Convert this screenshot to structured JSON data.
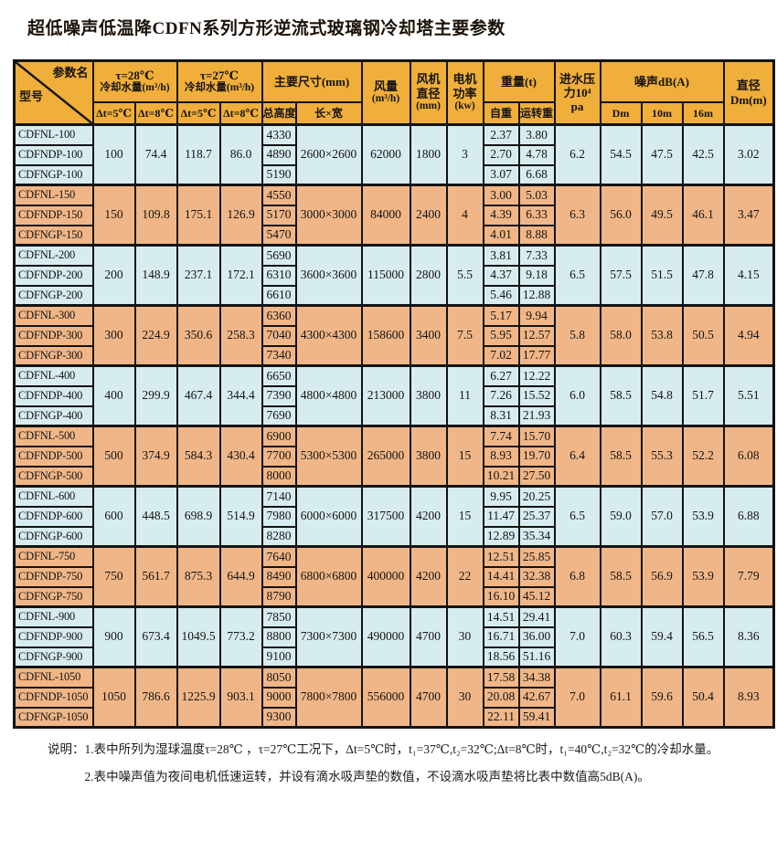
{
  "title": "超低噪声低温降CDFN系列方形逆流式玻璃钢冷却塔主要参数",
  "colors": {
    "header_gold": "#f0ae3a",
    "group_blue": "#d7ecef",
    "group_orange": "#f0b687",
    "border": "#131313"
  },
  "header": {
    "corner_top": "参数名",
    "corner_bottom": "型号",
    "tau28_line1": "τ=28℃",
    "tau28_line2": "冷却水量(m³/h)",
    "tau27_line1": "τ=27℃",
    "tau27_line2": "冷却水量(m³/h)",
    "dims": "主要尺寸(mm)",
    "flow_line1": "风量",
    "flow_line2": "(m³/h)",
    "fan_line1": "风机",
    "fan_line2": "直径",
    "fan_line3": "(mm)",
    "motor_line1": "电机",
    "motor_line2": "功率",
    "motor_line3": "(kw)",
    "weight": "重量(t)",
    "pressure_line1": "进水压",
    "pressure_line2": "力10⁴",
    "pressure_line3": "pa",
    "noise": "噪声dB(A)",
    "diameter_line1": "直径",
    "diameter_line2": "Dm(m)",
    "dt5": "Δt=5℃",
    "dt8": "Δt=8℃",
    "total_height": "总高度",
    "lw": "长×宽",
    "self_weight": "自重",
    "run_weight": "运转重",
    "dm": "Dm",
    "m10": "10m",
    "m16": "16m"
  },
  "groups": [
    {
      "tone": "blue",
      "shared": {
        "t28_dt5": "100",
        "t28_dt8": "74.4",
        "t27_dt5": "118.7",
        "t27_dt8": "86.0",
        "length_width": "2600×2600",
        "air_flow": "62000",
        "fan_diameter": "1800",
        "motor_power": "3",
        "water_pressure": "6.2",
        "noise_dm": "54.5",
        "noise_10m": "47.5",
        "noise_16m": "42.5",
        "diameter": "3.02"
      },
      "rows": [
        {
          "model": "CDFNL-100",
          "total_height": "4330",
          "self_weight": "2.37",
          "run_weight": "3.80"
        },
        {
          "model": "CDFNDP-100",
          "total_height": "4890",
          "self_weight": "2.70",
          "run_weight": "4.78"
        },
        {
          "model": "CDFNGP-100",
          "total_height": "5190",
          "self_weight": "3.07",
          "run_weight": "6.68"
        }
      ]
    },
    {
      "tone": "orange",
      "shared": {
        "t28_dt5": "150",
        "t28_dt8": "109.8",
        "t27_dt5": "175.1",
        "t27_dt8": "126.9",
        "length_width": "3000×3000",
        "air_flow": "84000",
        "fan_diameter": "2400",
        "motor_power": "4",
        "water_pressure": "6.3",
        "noise_dm": "56.0",
        "noise_10m": "49.5",
        "noise_16m": "46.1",
        "diameter": "3.47"
      },
      "rows": [
        {
          "model": "CDFNL-150",
          "total_height": "4550",
          "self_weight": "3.00",
          "run_weight": "5.03"
        },
        {
          "model": "CDFNDP-150",
          "total_height": "5170",
          "self_weight": "4.39",
          "run_weight": "6.33"
        },
        {
          "model": "CDFNGP-150",
          "total_height": "5470",
          "self_weight": "4.01",
          "run_weight": "8.88"
        }
      ]
    },
    {
      "tone": "blue",
      "shared": {
        "t28_dt5": "200",
        "t28_dt8": "148.9",
        "t27_dt5": "237.1",
        "t27_dt8": "172.1",
        "length_width": "3600×3600",
        "air_flow": "115000",
        "fan_diameter": "2800",
        "motor_power": "5.5",
        "water_pressure": "6.5",
        "noise_dm": "57.5",
        "noise_10m": "51.5",
        "noise_16m": "47.8",
        "diameter": "4.15"
      },
      "rows": [
        {
          "model": "CDFNL-200",
          "total_height": "5690",
          "self_weight": "3.81",
          "run_weight": "7.33"
        },
        {
          "model": "CDFNDP-200",
          "total_height": "6310",
          "self_weight": "4.37",
          "run_weight": "9.18"
        },
        {
          "model": "CDFNGP-200",
          "total_height": "6610",
          "self_weight": "5.46",
          "run_weight": "12.88"
        }
      ]
    },
    {
      "tone": "orange",
      "shared": {
        "t28_dt5": "300",
        "t28_dt8": "224.9",
        "t27_dt5": "350.6",
        "t27_dt8": "258.3",
        "length_width": "4300×4300",
        "air_flow": "158600",
        "fan_diameter": "3400",
        "motor_power": "7.5",
        "water_pressure": "5.8",
        "noise_dm": "58.0",
        "noise_10m": "53.8",
        "noise_16m": "50.5",
        "diameter": "4.94"
      },
      "rows": [
        {
          "model": "CDFNL-300",
          "total_height": "6360",
          "self_weight": "5.17",
          "run_weight": "9.94"
        },
        {
          "model": "CDFNDP-300",
          "total_height": "7040",
          "self_weight": "5.95",
          "run_weight": "12.57"
        },
        {
          "model": "CDFNGP-300",
          "total_height": "7340",
          "self_weight": "7.02",
          "run_weight": "17.77"
        }
      ]
    },
    {
      "tone": "blue",
      "shared": {
        "t28_dt5": "400",
        "t28_dt8": "299.9",
        "t27_dt5": "467.4",
        "t27_dt8": "344.4",
        "length_width": "4800×4800",
        "air_flow": "213000",
        "fan_diameter": "3800",
        "motor_power": "11",
        "water_pressure": "6.0",
        "noise_dm": "58.5",
        "noise_10m": "54.8",
        "noise_16m": "51.7",
        "diameter": "5.51"
      },
      "rows": [
        {
          "model": "CDFNL-400",
          "total_height": "6650",
          "self_weight": "6.27",
          "run_weight": "12.22"
        },
        {
          "model": "CDFNDP-400",
          "total_height": "7390",
          "self_weight": "7.26",
          "run_weight": "15.52"
        },
        {
          "model": "CDFNGP-400",
          "total_height": "7690",
          "self_weight": "8.31",
          "run_weight": "21.93"
        }
      ]
    },
    {
      "tone": "orange",
      "shared": {
        "t28_dt5": "500",
        "t28_dt8": "374.9",
        "t27_dt5": "584.3",
        "t27_dt8": "430.4",
        "length_width": "5300×5300",
        "air_flow": "265000",
        "fan_diameter": "3800",
        "motor_power": "15",
        "water_pressure": "6.4",
        "noise_dm": "58.5",
        "noise_10m": "55.3",
        "noise_16m": "52.2",
        "diameter": "6.08"
      },
      "rows": [
        {
          "model": "CDFNL-500",
          "total_height": "6900",
          "self_weight": "7.74",
          "run_weight": "15.70"
        },
        {
          "model": "CDFNDP-500",
          "total_height": "7700",
          "self_weight": "8.93",
          "run_weight": "19.70"
        },
        {
          "model": "CDFNGP-500",
          "total_height": "8000",
          "self_weight": "10.21",
          "run_weight": "27.50"
        }
      ]
    },
    {
      "tone": "blue",
      "shared": {
        "t28_dt5": "600",
        "t28_dt8": "448.5",
        "t27_dt5": "698.9",
        "t27_dt8": "514.9",
        "length_width": "6000×6000",
        "air_flow": "317500",
        "fan_diameter": "4200",
        "motor_power": "15",
        "water_pressure": "6.5",
        "noise_dm": "59.0",
        "noise_10m": "57.0",
        "noise_16m": "53.9",
        "diameter": "6.88"
      },
      "rows": [
        {
          "model": "CDFNL-600",
          "total_height": "7140",
          "self_weight": "9.95",
          "run_weight": "20.25"
        },
        {
          "model": "CDFNDP-600",
          "total_height": "7980",
          "self_weight": "11.47",
          "run_weight": "25.37"
        },
        {
          "model": "CDFNGP-600",
          "total_height": "8280",
          "self_weight": "12.89",
          "run_weight": "35.34"
        }
      ]
    },
    {
      "tone": "orange",
      "shared": {
        "t28_dt5": "750",
        "t28_dt8": "561.7",
        "t27_dt5": "875.3",
        "t27_dt8": "644.9",
        "length_width": "6800×6800",
        "air_flow": "400000",
        "fan_diameter": "4200",
        "motor_power": "22",
        "water_pressure": "6.8",
        "noise_dm": "58.5",
        "noise_10m": "56.9",
        "noise_16m": "53.9",
        "diameter": "7.79"
      },
      "rows": [
        {
          "model": "CDFNL-750",
          "total_height": "7640",
          "self_weight": "12.51",
          "run_weight": "25.85"
        },
        {
          "model": "CDFNDP-750",
          "total_height": "8490",
          "self_weight": "14.41",
          "run_weight": "32.38"
        },
        {
          "model": "CDFNGP-750",
          "total_height": "8790",
          "self_weight": "16.10",
          "run_weight": "45.12"
        }
      ]
    },
    {
      "tone": "blue",
      "shared": {
        "t28_dt5": "900",
        "t28_dt8": "673.4",
        "t27_dt5": "1049.5",
        "t27_dt8": "773.2",
        "length_width": "7300×7300",
        "air_flow": "490000",
        "fan_diameter": "4700",
        "motor_power": "30",
        "water_pressure": "7.0",
        "noise_dm": "60.3",
        "noise_10m": "59.4",
        "noise_16m": "56.5",
        "diameter": "8.36"
      },
      "rows": [
        {
          "model": "CDFNL-900",
          "total_height": "7850",
          "self_weight": "14.51",
          "run_weight": "29.41"
        },
        {
          "model": "CDFNDP-900",
          "total_height": "8800",
          "self_weight": "16.71",
          "run_weight": "36.00"
        },
        {
          "model": "CDFNGP-900",
          "total_height": "9100",
          "self_weight": "18.56",
          "run_weight": "51.16"
        }
      ]
    },
    {
      "tone": "orange",
      "shared": {
        "t28_dt5": "1050",
        "t28_dt8": "786.6",
        "t27_dt5": "1225.9",
        "t27_dt8": "903.1",
        "length_width": "7800×7800",
        "air_flow": "556000",
        "fan_diameter": "4700",
        "motor_power": "30",
        "water_pressure": "7.0",
        "noise_dm": "61.1",
        "noise_10m": "59.6",
        "noise_16m": "50.4",
        "diameter": "8.93"
      },
      "rows": [
        {
          "model": "CDFNL-1050",
          "total_height": "8050",
          "self_weight": "17.58",
          "run_weight": "34.38"
        },
        {
          "model": "CDFNDP-1050",
          "total_height": "9000",
          "self_weight": "20.08",
          "run_weight": "42.67"
        },
        {
          "model": "CDFNGP-1050",
          "total_height": "9300",
          "self_weight": "22.11",
          "run_weight": "59.41"
        }
      ]
    }
  ],
  "notes": {
    "label": "说明：",
    "items": [
      "1.表中所列为湿球温度τ=28℃ ，τ=27℃工况下，Δt=5℃时，t₁=37℃,t₂=32℃;Δt=8℃时，t₁=40℃,t₂=32℃的冷却水量。",
      "2.表中噪声值为夜间电机低速运转，并设有滴水吸声垫的数值，不设滴水吸声垫将比表中数值高5dB(A)。"
    ]
  }
}
